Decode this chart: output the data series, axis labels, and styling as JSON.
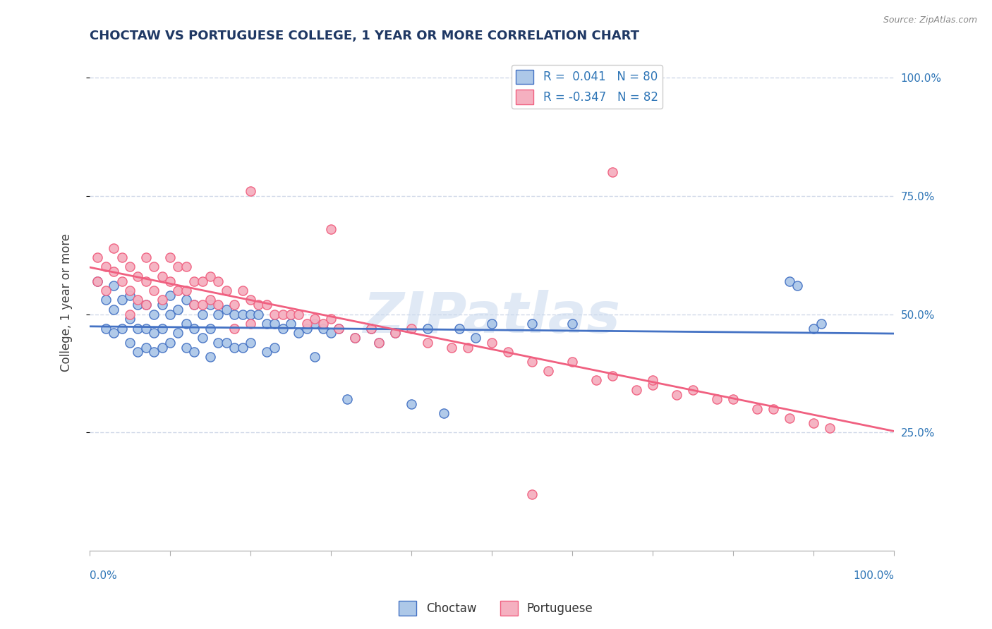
{
  "title": "CHOCTAW VS PORTUGUESE COLLEGE, 1 YEAR OR MORE CORRELATION CHART",
  "source": "Source: ZipAtlas.com",
  "ylabel": "College, 1 year or more",
  "ylabel_right_ticks": [
    "100.0%",
    "75.0%",
    "50.0%",
    "25.0%"
  ],
  "ylabel_right_vals": [
    1.0,
    0.75,
    0.5,
    0.25
  ],
  "xlim": [
    0.0,
    1.0
  ],
  "ylim": [
    0.0,
    1.05
  ],
  "choctaw_color": "#adc8e8",
  "portuguese_color": "#f5b0c0",
  "choctaw_line_color": "#4472c4",
  "portuguese_line_color": "#f06080",
  "R_choctaw": 0.041,
  "N_choctaw": 80,
  "R_portuguese": -0.347,
  "N_portuguese": 82,
  "watermark": "ZIPatlas",
  "background_color": "#ffffff",
  "grid_color": "#d0d8e8",
  "title_color": "#1f3864",
  "axis_label_color": "#2e75b6",
  "choctaw_x": [
    0.01,
    0.02,
    0.02,
    0.03,
    0.03,
    0.03,
    0.04,
    0.04,
    0.05,
    0.05,
    0.05,
    0.06,
    0.06,
    0.06,
    0.07,
    0.07,
    0.07,
    0.08,
    0.08,
    0.08,
    0.09,
    0.09,
    0.09,
    0.1,
    0.1,
    0.1,
    0.11,
    0.11,
    0.12,
    0.12,
    0.12,
    0.13,
    0.13,
    0.13,
    0.14,
    0.14,
    0.15,
    0.15,
    0.15,
    0.16,
    0.16,
    0.17,
    0.17,
    0.18,
    0.18,
    0.19,
    0.19,
    0.2,
    0.2,
    0.21,
    0.22,
    0.22,
    0.23,
    0.23,
    0.24,
    0.25,
    0.26,
    0.27,
    0.28,
    0.28,
    0.29,
    0.3,
    0.31,
    0.32,
    0.33,
    0.35,
    0.36,
    0.38,
    0.4,
    0.42,
    0.44,
    0.46,
    0.48,
    0.5,
    0.55,
    0.6,
    0.87,
    0.88,
    0.9,
    0.91
  ],
  "choctaw_y": [
    0.57,
    0.53,
    0.47,
    0.56,
    0.51,
    0.46,
    0.53,
    0.47,
    0.54,
    0.49,
    0.44,
    0.52,
    0.47,
    0.42,
    0.52,
    0.47,
    0.43,
    0.5,
    0.46,
    0.42,
    0.52,
    0.47,
    0.43,
    0.54,
    0.5,
    0.44,
    0.51,
    0.46,
    0.53,
    0.48,
    0.43,
    0.52,
    0.47,
    0.42,
    0.5,
    0.45,
    0.52,
    0.47,
    0.41,
    0.5,
    0.44,
    0.51,
    0.44,
    0.5,
    0.43,
    0.5,
    0.43,
    0.5,
    0.44,
    0.5,
    0.48,
    0.42,
    0.48,
    0.43,
    0.47,
    0.48,
    0.46,
    0.47,
    0.48,
    0.41,
    0.47,
    0.46,
    0.47,
    0.32,
    0.45,
    0.47,
    0.44,
    0.46,
    0.31,
    0.47,
    0.29,
    0.47,
    0.45,
    0.48,
    0.48,
    0.48,
    0.57,
    0.56,
    0.47,
    0.48
  ],
  "portuguese_x": [
    0.01,
    0.01,
    0.02,
    0.02,
    0.03,
    0.03,
    0.04,
    0.04,
    0.05,
    0.05,
    0.05,
    0.06,
    0.06,
    0.07,
    0.07,
    0.07,
    0.08,
    0.08,
    0.09,
    0.09,
    0.1,
    0.1,
    0.11,
    0.11,
    0.12,
    0.12,
    0.13,
    0.13,
    0.14,
    0.14,
    0.15,
    0.15,
    0.16,
    0.16,
    0.17,
    0.18,
    0.18,
    0.19,
    0.2,
    0.2,
    0.21,
    0.22,
    0.23,
    0.24,
    0.25,
    0.26,
    0.27,
    0.28,
    0.29,
    0.3,
    0.31,
    0.33,
    0.35,
    0.36,
    0.38,
    0.4,
    0.42,
    0.45,
    0.47,
    0.5,
    0.52,
    0.55,
    0.57,
    0.6,
    0.63,
    0.65,
    0.68,
    0.7,
    0.73,
    0.75,
    0.78,
    0.8,
    0.83,
    0.85,
    0.87,
    0.9,
    0.92,
    0.65,
    0.2,
    0.3,
    0.55,
    0.7
  ],
  "portuguese_y": [
    0.62,
    0.57,
    0.6,
    0.55,
    0.64,
    0.59,
    0.62,
    0.57,
    0.6,
    0.55,
    0.5,
    0.58,
    0.53,
    0.62,
    0.57,
    0.52,
    0.6,
    0.55,
    0.58,
    0.53,
    0.62,
    0.57,
    0.6,
    0.55,
    0.6,
    0.55,
    0.57,
    0.52,
    0.57,
    0.52,
    0.58,
    0.53,
    0.57,
    0.52,
    0.55,
    0.52,
    0.47,
    0.55,
    0.53,
    0.48,
    0.52,
    0.52,
    0.5,
    0.5,
    0.5,
    0.5,
    0.48,
    0.49,
    0.48,
    0.49,
    0.47,
    0.45,
    0.47,
    0.44,
    0.46,
    0.47,
    0.44,
    0.43,
    0.43,
    0.44,
    0.42,
    0.4,
    0.38,
    0.4,
    0.36,
    0.37,
    0.34,
    0.35,
    0.33,
    0.34,
    0.32,
    0.32,
    0.3,
    0.3,
    0.28,
    0.27,
    0.26,
    0.8,
    0.76,
    0.68,
    0.12,
    0.36
  ]
}
